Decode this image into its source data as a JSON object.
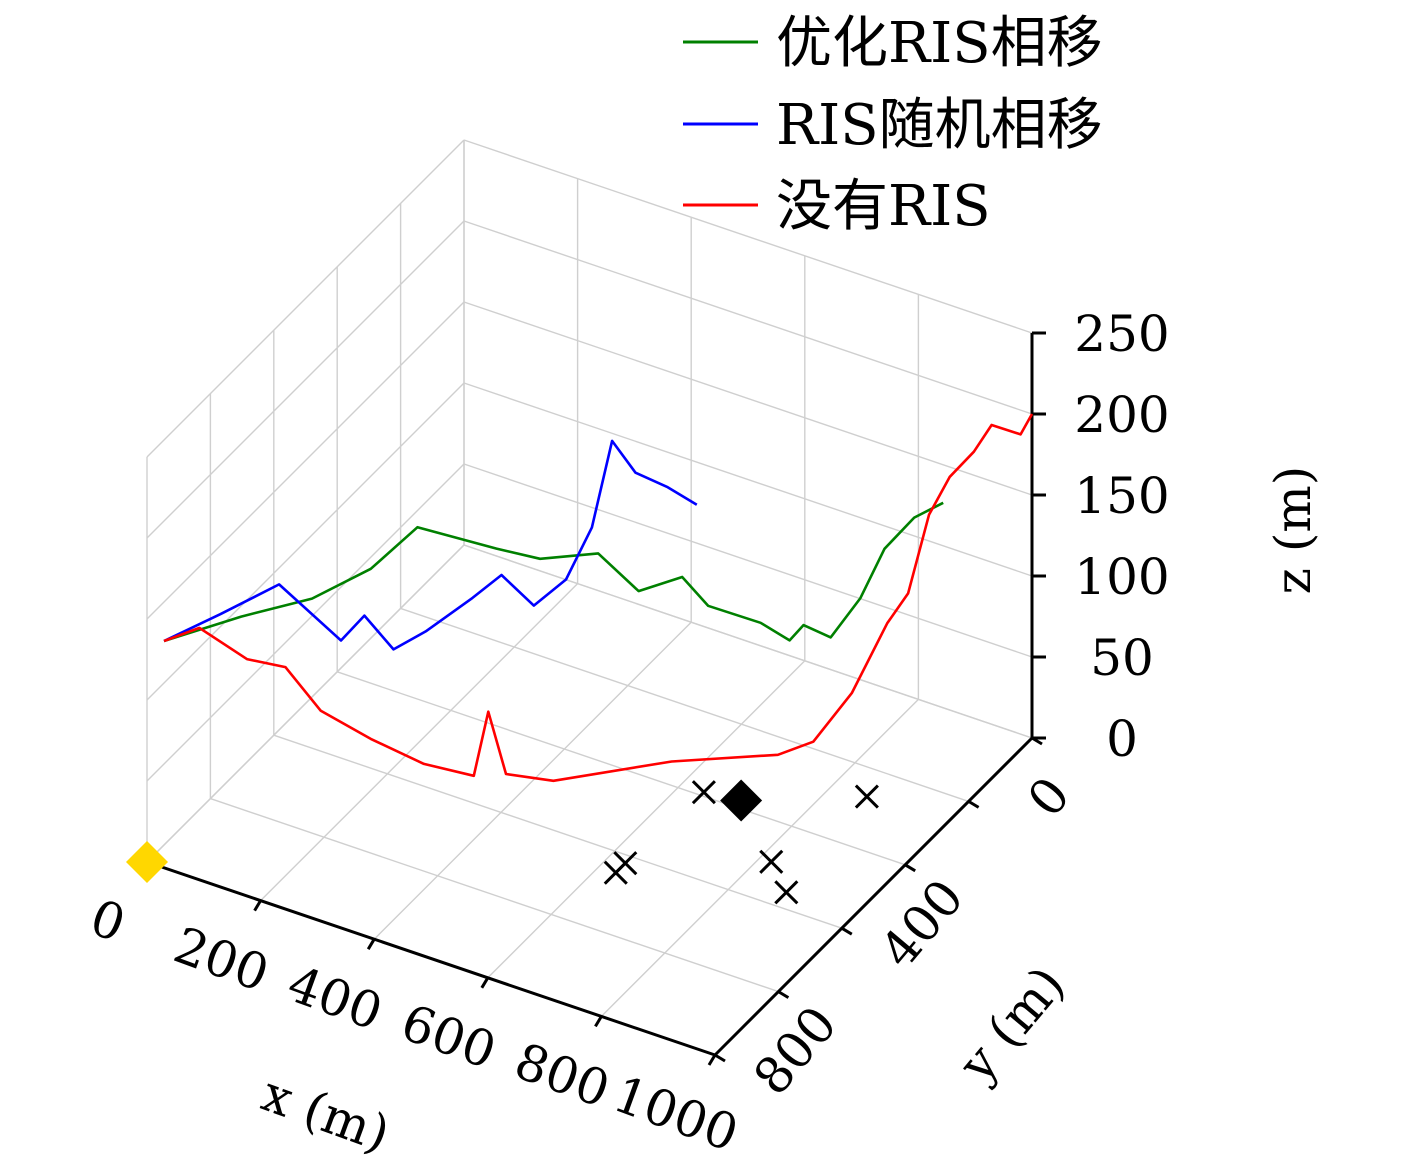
{
  "chart_data": {
    "type": "line3d",
    "xlabel": "x (m)",
    "ylabel": "y (m)",
    "zlabel": "z (m)",
    "x_ticks": [
      "0",
      "200",
      "400",
      "600",
      "800",
      "1000"
    ],
    "y_ticks": [
      "0",
      "400",
      "800"
    ],
    "z_ticks": [
      "0",
      "50",
      "100",
      "150",
      "200",
      "250"
    ],
    "xlim": [
      0,
      1000
    ],
    "ylim": [
      0,
      1000
    ],
    "zlim": [
      0,
      250
    ],
    "grid": true,
    "legend_position": "top-right",
    "series": [
      {
        "name": "优化RIS相移",
        "color": "#008000",
        "points": [
          [
            30,
            1000,
            140
          ],
          [
            110,
            900,
            145
          ],
          [
            190,
            820,
            150
          ],
          [
            260,
            760,
            165
          ],
          [
            320,
            720,
            190
          ],
          [
            420,
            650,
            175
          ],
          [
            480,
            620,
            170
          ],
          [
            560,
            580,
            175
          ],
          [
            620,
            560,
            155
          ],
          [
            680,
            530,
            165
          ],
          [
            720,
            520,
            150
          ],
          [
            790,
            480,
            140
          ],
          [
            830,
            460,
            130
          ],
          [
            860,
            470,
            145
          ],
          [
            880,
            420,
            130
          ],
          [
            910,
            380,
            150
          ],
          [
            930,
            340,
            175
          ],
          [
            960,
            300,
            190
          ],
          [
            1000,
            280,
            200
          ]
        ]
      },
      {
        "name": "RIS随机相移",
        "color": "#0000ff",
        "points": [
          [
            30,
            1000,
            140
          ],
          [
            90,
            930,
            150
          ],
          [
            160,
            870,
            165
          ],
          [
            230,
            800,
            125
          ],
          [
            260,
            780,
            140
          ],
          [
            300,
            760,
            120
          ],
          [
            340,
            730,
            130
          ],
          [
            400,
            690,
            150
          ],
          [
            440,
            670,
            165
          ],
          [
            480,
            640,
            145
          ],
          [
            520,
            610,
            160
          ],
          [
            560,
            600,
            195
          ],
          [
            590,
            590,
            250
          ],
          [
            620,
            570,
            230
          ],
          [
            660,
            540,
            220
          ],
          [
            700,
            520,
            210
          ]
        ]
      },
      {
        "name": "没有RIS",
        "color": "#ff0000",
        "points": [
          [
            30,
            1000,
            140
          ],
          [
            70,
            960,
            145
          ],
          [
            120,
            900,
            120
          ],
          [
            160,
            850,
            110
          ],
          [
            200,
            810,
            80
          ],
          [
            260,
            760,
            60
          ],
          [
            320,
            700,
            40
          ],
          [
            380,
            650,
            30
          ],
          [
            400,
            640,
            70
          ],
          [
            420,
            620,
            30
          ],
          [
            470,
            560,
            20
          ],
          [
            600,
            420,
            20
          ],
          [
            720,
            300,
            15
          ],
          [
            760,
            260,
            20
          ],
          [
            800,
            210,
            45
          ],
          [
            840,
            170,
            85
          ],
          [
            860,
            140,
            100
          ],
          [
            880,
            110,
            145
          ],
          [
            900,
            80,
            165
          ],
          [
            920,
            40,
            175
          ],
          [
            940,
            20,
            190
          ],
          [
            980,
            0,
            185
          ],
          [
            1000,
            0,
            200
          ]
        ]
      }
    ],
    "markers": [
      {
        "shape": "diamond",
        "color": "#ffd700",
        "point": [
          0,
          1000,
          0
        ]
      },
      {
        "shape": "diamond",
        "color": "#000000",
        "point": [
          700,
          380,
          0
        ]
      },
      {
        "shape": "x",
        "color": "#000000",
        "point": [
          640,
          390,
          0
        ]
      },
      {
        "shape": "x",
        "color": "#000000",
        "point": [
          860,
          270,
          0
        ]
      },
      {
        "shape": "x",
        "color": "#000000",
        "point": [
          630,
          620,
          0
        ]
      },
      {
        "shape": "x",
        "color": "#000000",
        "point": [
          630,
          650,
          0
        ]
      },
      {
        "shape": "x",
        "color": "#000000",
        "point": [
          820,
          500,
          0
        ]
      },
      {
        "shape": "x",
        "color": "#000000",
        "point": [
          880,
          560,
          0
        ]
      }
    ]
  }
}
